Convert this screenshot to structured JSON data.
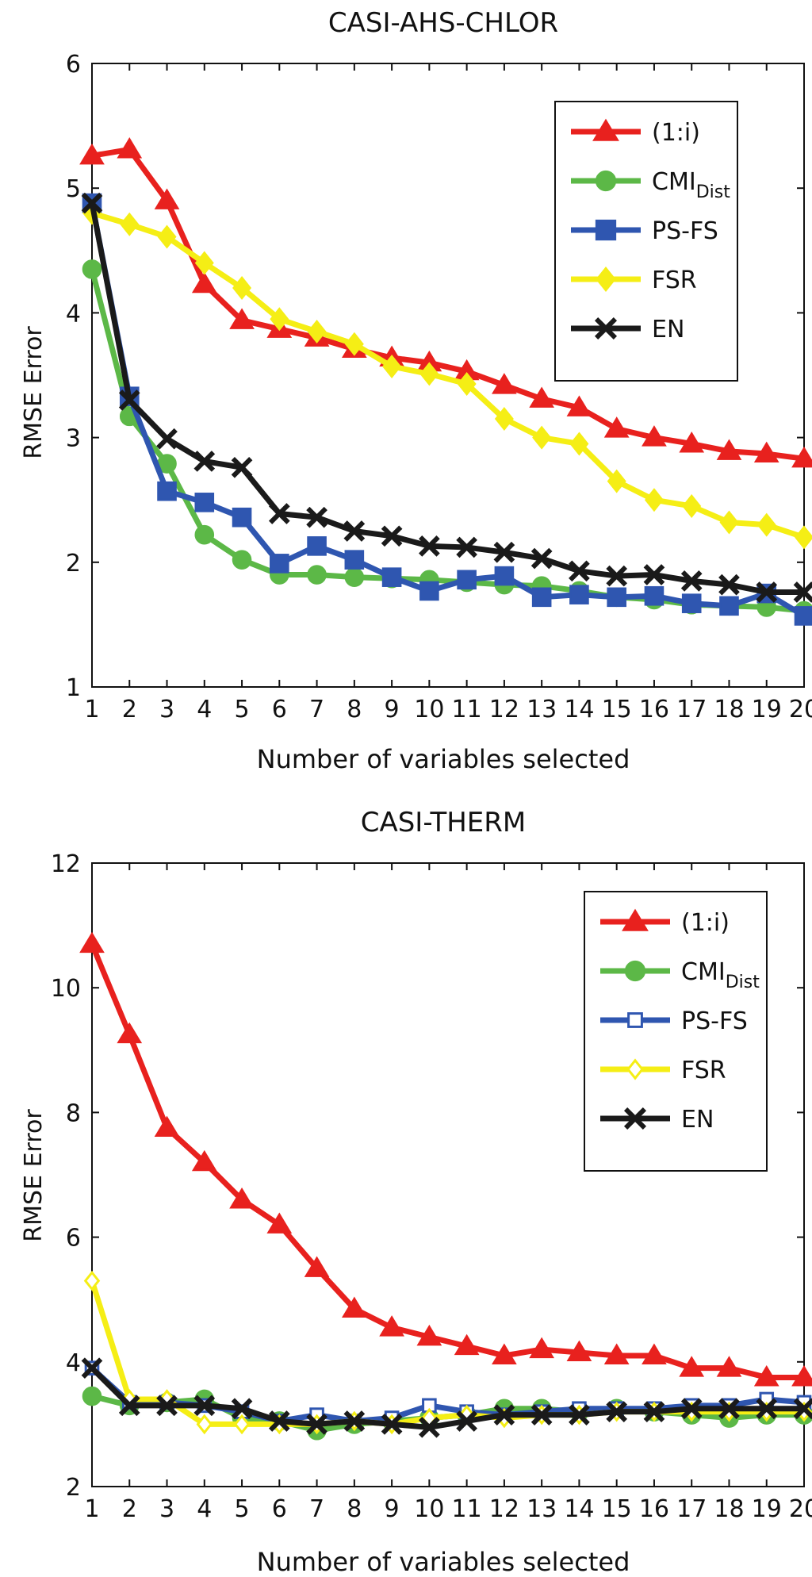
{
  "chart_data": [
    {
      "type": "line",
      "title": "CASI-AHS-CHLOR",
      "xlabel": "Number of variables selected",
      "ylabel": "RMSE Error",
      "xlim": [
        1,
        20
      ],
      "ylim": [
        1,
        6
      ],
      "xticks": [
        "1",
        "2",
        "3",
        "4",
        "5",
        "6",
        "7",
        "8",
        "9",
        "10",
        "11",
        "12",
        "13",
        "14",
        "15",
        "16",
        "17",
        "18",
        "19",
        "20"
      ],
      "yticks": [
        "1",
        "2",
        "3",
        "4",
        "5",
        "6"
      ],
      "legend_position": "top-right",
      "grid": false,
      "x": [
        1,
        2,
        3,
        4,
        5,
        6,
        7,
        8,
        9,
        10,
        11,
        12,
        13,
        14,
        15,
        16,
        17,
        18,
        19,
        20
      ],
      "series": [
        {
          "name": "(1:i)",
          "legend_main": "(1:i)",
          "legend_sub": "",
          "color": "#e8211e",
          "marker": "triangle",
          "filled": true,
          "values": [
            5.26,
            5.31,
            4.9,
            4.23,
            3.94,
            3.87,
            3.8,
            3.71,
            3.64,
            3.6,
            3.53,
            3.42,
            3.31,
            3.24,
            3.07,
            3.0,
            2.95,
            2.89,
            2.87,
            2.83
          ]
        },
        {
          "name": "CMI_Dist",
          "legend_main": "CMI",
          "legend_sub": "Dist",
          "color": "#5cb847",
          "marker": "circle",
          "filled": true,
          "values": [
            4.35,
            3.17,
            2.79,
            2.22,
            2.02,
            1.9,
            1.9,
            1.88,
            1.87,
            1.86,
            1.84,
            1.82,
            1.81,
            1.77,
            1.72,
            1.7,
            1.66,
            1.65,
            1.64,
            1.61
          ]
        },
        {
          "name": "PS-FS",
          "legend_main": "PS-FS",
          "legend_sub": "",
          "color": "#2f56b0",
          "marker": "square",
          "filled": true,
          "values": [
            4.88,
            3.33,
            2.57,
            2.48,
            2.36,
            1.99,
            2.13,
            2.02,
            1.88,
            1.77,
            1.86,
            1.89,
            1.72,
            1.74,
            1.72,
            1.73,
            1.67,
            1.65,
            1.75,
            1.57
          ]
        },
        {
          "name": "FSR",
          "legend_main": "FSR",
          "legend_sub": "",
          "color": "#f5ee15",
          "marker": "diamond",
          "filled": true,
          "values": [
            4.8,
            4.71,
            4.61,
            4.4,
            4.2,
            3.95,
            3.85,
            3.75,
            3.57,
            3.51,
            3.43,
            3.15,
            3.0,
            2.95,
            2.65,
            2.5,
            2.45,
            2.32,
            2.3,
            2.2
          ]
        },
        {
          "name": "EN",
          "legend_main": "EN",
          "legend_sub": "",
          "color": "#1a1a1a",
          "marker": "x",
          "filled": true,
          "values": [
            4.88,
            3.3,
            2.99,
            2.81,
            2.76,
            2.39,
            2.36,
            2.25,
            2.21,
            2.13,
            2.12,
            2.08,
            2.03,
            1.93,
            1.89,
            1.9,
            1.85,
            1.82,
            1.76,
            1.76
          ]
        }
      ]
    },
    {
      "type": "line",
      "title": "CASI-THERM",
      "xlabel": "Number of variables selected",
      "ylabel": "RMSE Error",
      "xlim": [
        1,
        20
      ],
      "ylim": [
        2,
        12
      ],
      "xticks": [
        "1",
        "2",
        "3",
        "4",
        "5",
        "6",
        "7",
        "8",
        "9",
        "10",
        "11",
        "12",
        "13",
        "14",
        "15",
        "16",
        "17",
        "18",
        "19",
        "20"
      ],
      "yticks": [
        "2",
        "4",
        "6",
        "8",
        "10",
        "12"
      ],
      "legend_position": "top-right",
      "grid": false,
      "x": [
        1,
        2,
        3,
        4,
        5,
        6,
        7,
        8,
        9,
        10,
        11,
        12,
        13,
        14,
        15,
        16,
        17,
        18,
        19,
        20
      ],
      "series": [
        {
          "name": "(1:i)",
          "legend_main": "(1:i)",
          "legend_sub": "",
          "color": "#e8211e",
          "marker": "triangle",
          "filled": true,
          "values": [
            10.7,
            9.25,
            7.75,
            7.2,
            6.6,
            6.2,
            5.5,
            4.85,
            4.55,
            4.4,
            4.25,
            4.1,
            4.2,
            4.15,
            4.1,
            4.1,
            3.9,
            3.9,
            3.75,
            3.75
          ]
        },
        {
          "name": "CMI_Dist",
          "legend_main": "CMI",
          "legend_sub": "Dist",
          "color": "#5cb847",
          "marker": "circle",
          "filled": true,
          "values": [
            3.45,
            3.3,
            3.35,
            3.4,
            3.1,
            3.05,
            2.9,
            3.0,
            3.05,
            3.1,
            3.15,
            3.25,
            3.25,
            3.2,
            3.25,
            3.2,
            3.15,
            3.1,
            3.15,
            3.15
          ]
        },
        {
          "name": "PS-FS",
          "legend_main": "PS-FS",
          "legend_sub": "",
          "color": "#2f56b0",
          "marker": "square",
          "filled": false,
          "values": [
            3.9,
            3.35,
            3.35,
            3.3,
            3.2,
            3.05,
            3.15,
            3.05,
            3.1,
            3.3,
            3.2,
            3.15,
            3.2,
            3.25,
            3.25,
            3.25,
            3.3,
            3.3,
            3.4,
            3.35
          ]
        },
        {
          "name": "FSR",
          "legend_main": "FSR",
          "legend_sub": "",
          "color": "#f5ee15",
          "marker": "diamond",
          "filled": false,
          "values": [
            5.3,
            3.4,
            3.4,
            3.0,
            3.0,
            3.0,
            3.0,
            3.05,
            3.0,
            3.1,
            3.15,
            3.1,
            3.15,
            3.15,
            3.2,
            3.2,
            3.2,
            3.2,
            3.2,
            3.2
          ]
        },
        {
          "name": "EN",
          "legend_main": "EN",
          "legend_sub": "",
          "color": "#1a1a1a",
          "marker": "x",
          "filled": true,
          "values": [
            3.9,
            3.3,
            3.3,
            3.3,
            3.25,
            3.05,
            3.0,
            3.05,
            3.0,
            2.95,
            3.05,
            3.15,
            3.15,
            3.15,
            3.2,
            3.2,
            3.25,
            3.25,
            3.25,
            3.25
          ]
        }
      ]
    }
  ]
}
